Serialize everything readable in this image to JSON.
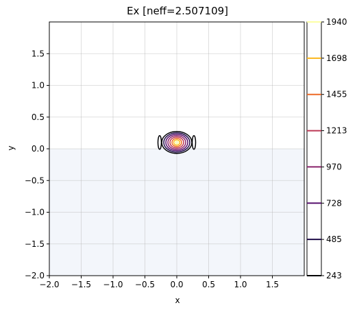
{
  "chart_data": {
    "type": "contour",
    "title": "Ex [neff=2.507109]",
    "xlabel": "x",
    "ylabel": "y",
    "xlim": [
      -2.0,
      2.0
    ],
    "ylim": [
      -2.0,
      2.0
    ],
    "xticks": [
      -2.0,
      -1.5,
      -1.0,
      -0.5,
      0.0,
      0.5,
      1.0,
      1.5
    ],
    "yticks": [
      -2.0,
      -1.5,
      -1.0,
      -0.5,
      0.0,
      0.5,
      1.0,
      1.5
    ],
    "xtick_labels": [
      "−2.0",
      "−1.5",
      "−1.0",
      "−0.5",
      "0.0",
      "0.5",
      "1.0",
      "1.5"
    ],
    "ytick_labels": [
      "−2.0",
      "−1.5",
      "−1.0",
      "−0.5",
      "0.0",
      "0.5",
      "1.0",
      "1.5"
    ],
    "grid": true,
    "substrate_region": {
      "ymin": -2.0,
      "ymax": 0.0,
      "color": "#f3f6fb"
    },
    "mode_center": [
      0.0,
      0.1
    ],
    "contour_levels": [
      243,
      485,
      728,
      970,
      1213,
      1455,
      1698,
      1940
    ],
    "colorbar": {
      "labels": [
        "1940",
        "1698",
        "1455",
        "1213",
        "970",
        "728",
        "485",
        "243"
      ],
      "colors": [
        "#fcffa4",
        "#fbb61a",
        "#ed6925",
        "#bc3754",
        "#89226a",
        "#57106e",
        "#1f0c48",
        "#000004"
      ]
    }
  }
}
